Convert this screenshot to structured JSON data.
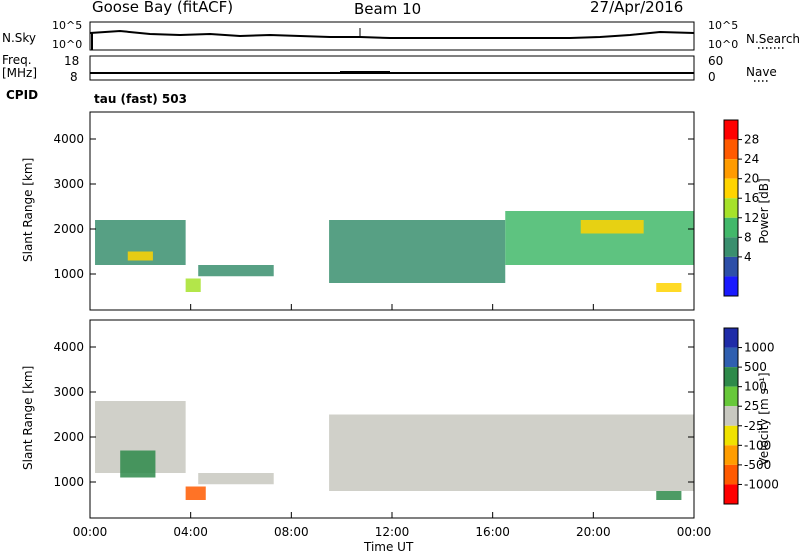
{
  "header": {
    "station": "Goose Bay (fitACF)",
    "beam": "Beam 10",
    "date": "27/Apr/2016"
  },
  "panel_labels": {
    "nsky": "N.Sky",
    "nsky_ticks": [
      "10^5",
      "10^0"
    ],
    "nsearch": "N.Search",
    "nsearch_ticks": [
      "10^5",
      "10^0"
    ],
    "freq_line1": "Freq.",
    "freq_line2": "[MHz]",
    "freq_ticks": [
      "18",
      "8"
    ],
    "nave": "Nave",
    "nave_ticks": [
      "60",
      "0"
    ],
    "cpid": "CPID",
    "cpid_name": "tau (fast) 503"
  },
  "power_colorbar": {
    "label": "Power [dB]",
    "ticks": [
      "28",
      "24",
      "20",
      "16",
      "12",
      "8",
      "4"
    ],
    "colors": [
      "#ff0000",
      "#ff5a00",
      "#ff9b00",
      "#ffd400",
      "#a6e22a",
      "#42b86a",
      "#3a8f6e",
      "#2d4fa8",
      "#1a1aff"
    ]
  },
  "velocity_colorbar": {
    "label": "Velocity [m s⁻¹]",
    "ticks": [
      "1000",
      "500",
      "100",
      "25",
      "-25",
      "-100",
      "-500",
      "-1000"
    ],
    "colors": [
      "#1f2ca8",
      "#2f5fb0",
      "#2e8a4a",
      "#67c83a",
      "#c8c8c0",
      "#f0e200",
      "#ff9d00",
      "#ff5a00",
      "#ff0000"
    ]
  },
  "chart_data": [
    {
      "type": "heatmap",
      "title": "",
      "xlabel": "Time UT",
      "ylabel": "Slant Range [km]",
      "quantity": "Power [dB]",
      "x_ticks": [
        "00:00",
        "04:00",
        "08:00",
        "12:00",
        "16:00",
        "20:00",
        "00:00"
      ],
      "y_ticks": [
        1000,
        2000,
        3000,
        4000
      ],
      "xlim": [
        0,
        24
      ],
      "ylim": [
        200,
        4600
      ],
      "regions": [
        {
          "t": [
            0.2,
            3.8
          ],
          "range": [
            1200,
            2200
          ],
          "power_db": 10
        },
        {
          "t": [
            1.5,
            2.5
          ],
          "range": [
            1300,
            1500
          ],
          "power_db": 20
        },
        {
          "t": [
            3.8,
            4.4
          ],
          "range": [
            600,
            900
          ],
          "power_db": 18
        },
        {
          "t": [
            4.3,
            7.3
          ],
          "range": [
            950,
            1200
          ],
          "power_db": 9
        },
        {
          "t": [
            9.5,
            16.5
          ],
          "range": [
            800,
            2200
          ],
          "power_db": 10
        },
        {
          "t": [
            16.5,
            24
          ],
          "range": [
            1200,
            2400
          ],
          "power_db": 14
        },
        {
          "t": [
            19.5,
            22.0
          ],
          "range": [
            1900,
            2200
          ],
          "power_db": 22
        },
        {
          "t": [
            22.5,
            23.5
          ],
          "range": [
            600,
            800
          ],
          "power_db": 20
        }
      ]
    },
    {
      "type": "heatmap",
      "title": "",
      "xlabel": "Time UT",
      "ylabel": "Slant Range [km]",
      "quantity": "Velocity [m s⁻¹]",
      "x_ticks": [
        "00:00",
        "04:00",
        "08:00",
        "12:00",
        "16:00",
        "20:00",
        "00:00"
      ],
      "y_ticks": [
        1000,
        2000,
        3000,
        4000
      ],
      "xlim": [
        0,
        24
      ],
      "ylim": [
        200,
        4600
      ],
      "regions": [
        {
          "t": [
            0.2,
            3.8
          ],
          "range": [
            1200,
            2800
          ],
          "velocity": 0
        },
        {
          "t": [
            1.2,
            2.6
          ],
          "range": [
            1100,
            1700
          ],
          "velocity": 300
        },
        {
          "t": [
            3.8,
            4.6
          ],
          "range": [
            600,
            900
          ],
          "velocity": -300
        },
        {
          "t": [
            4.3,
            7.3
          ],
          "range": [
            950,
            1200
          ],
          "velocity": 0
        },
        {
          "t": [
            9.5,
            24.0
          ],
          "range": [
            800,
            2500
          ],
          "velocity": 0
        },
        {
          "t": [
            22.5,
            23.5
          ],
          "range": [
            600,
            800
          ],
          "velocity": 150
        }
      ]
    }
  ]
}
